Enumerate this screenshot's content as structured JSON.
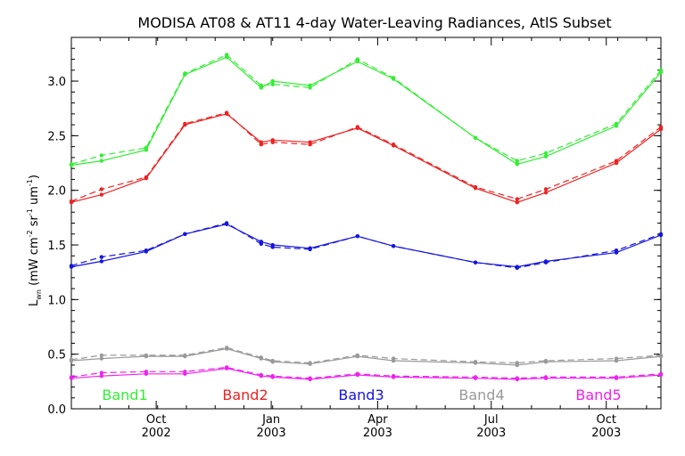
{
  "chart_data": {
    "type": "line",
    "title": "MODISA AT08 & AT11 4-day Water-Leaving Radiances, AtlS Subset",
    "ylabel_main": "L",
    "ylabel_sub": "wn",
    "ylabel_units_open": " (mW cm",
    "ylabel_units_mid1": " sr",
    "ylabel_units_mid2": " um",
    "ylabel_units_close": ")",
    "ylabel_exp_a": "-2",
    "ylabel_exp_b": "-1",
    "ylabel_exp_c": "-1",
    "ylim": [
      0.0,
      3.4
    ],
    "yticks": [
      "0.0",
      "0.5",
      "1.0",
      "1.5",
      "2.0",
      "2.5",
      "3.0"
    ],
    "ytick_values": [
      0.0,
      0.5,
      1.0,
      1.5,
      2.0,
      2.5,
      3.0
    ],
    "xlim_months": [
      0,
      20.5
    ],
    "xtick_labels": [
      {
        "month": "Oct",
        "year": "2002",
        "pos": 2.95
      },
      {
        "month": "Jan",
        "year": "2003",
        "pos": 6.95
      },
      {
        "month": "Apr",
        "year": "2003",
        "pos": 10.65
      },
      {
        "month": "Jul",
        "year": "2003",
        "pos": 14.6
      },
      {
        "month": "Oct",
        "year": "2003",
        "pos": 18.6
      }
    ],
    "x_dates": [
      "2002-07-04",
      "2002-08-05",
      "2002-09-06",
      "2002-10-08",
      "2002-11-25",
      "2003-01-02",
      "2003-01-14",
      "2003-02-17",
      "2003-03-21",
      "2003-04-22",
      "2003-06-17",
      "2003-07-19",
      "2003-08-20",
      "2003-10-07",
      "2003-11-08"
    ],
    "x_positions": [
      0,
      1.05,
      2.6,
      3.95,
      5.4,
      6.6,
      7.0,
      8.3,
      9.95,
      11.2,
      14.05,
      15.5,
      16.5,
      18.95,
      20.5
    ],
    "legend_position": "bottom",
    "legend": [
      "Band1",
      "Band2",
      "Band3",
      "Band4",
      "Band5"
    ],
    "series": [
      {
        "name": "Band1",
        "color": "#33ee33",
        "solid": [
          2.23,
          2.27,
          2.37,
          3.06,
          3.22,
          2.94,
          3.0,
          2.96,
          3.18,
          3.02,
          2.48,
          2.24,
          2.31,
          2.59,
          3.08
        ],
        "dashed": [
          2.24,
          2.32,
          2.39,
          3.07,
          3.24,
          2.96,
          2.97,
          2.94,
          3.2,
          3.03,
          2.48,
          2.27,
          2.34,
          2.61,
          3.1
        ]
      },
      {
        "name": "Band2",
        "color": "#ee2222",
        "solid": [
          1.89,
          1.96,
          2.11,
          2.6,
          2.7,
          2.44,
          2.46,
          2.44,
          2.57,
          2.41,
          2.02,
          1.89,
          1.98,
          2.25,
          2.56
        ],
        "dashed": [
          1.9,
          2.01,
          2.12,
          2.61,
          2.71,
          2.42,
          2.44,
          2.42,
          2.58,
          2.42,
          2.03,
          1.92,
          2.01,
          2.27,
          2.58
        ]
      },
      {
        "name": "Band3",
        "color": "#1515dd",
        "solid": [
          1.3,
          1.35,
          1.44,
          1.6,
          1.69,
          1.53,
          1.5,
          1.47,
          1.58,
          1.49,
          1.34,
          1.3,
          1.35,
          1.43,
          1.59
        ],
        "dashed": [
          1.31,
          1.39,
          1.45,
          1.6,
          1.7,
          1.51,
          1.48,
          1.46,
          1.58,
          1.49,
          1.34,
          1.29,
          1.34,
          1.45,
          1.6
        ]
      },
      {
        "name": "Band4",
        "color": "#999999",
        "solid": [
          0.44,
          0.46,
          0.48,
          0.48,
          0.55,
          0.46,
          0.43,
          0.41,
          0.48,
          0.44,
          0.42,
          0.4,
          0.43,
          0.44,
          0.48
        ],
        "dashed": [
          0.45,
          0.49,
          0.49,
          0.49,
          0.56,
          0.47,
          0.44,
          0.42,
          0.49,
          0.46,
          0.43,
          0.42,
          0.44,
          0.46,
          0.49
        ]
      },
      {
        "name": "Band5",
        "color": "#ee22ee",
        "solid": [
          0.28,
          0.3,
          0.32,
          0.32,
          0.37,
          0.3,
          0.29,
          0.27,
          0.31,
          0.29,
          0.28,
          0.27,
          0.28,
          0.28,
          0.31
        ],
        "dashed": [
          0.29,
          0.33,
          0.34,
          0.34,
          0.38,
          0.31,
          0.3,
          0.28,
          0.32,
          0.3,
          0.29,
          0.28,
          0.29,
          0.29,
          0.32
        ]
      }
    ]
  }
}
